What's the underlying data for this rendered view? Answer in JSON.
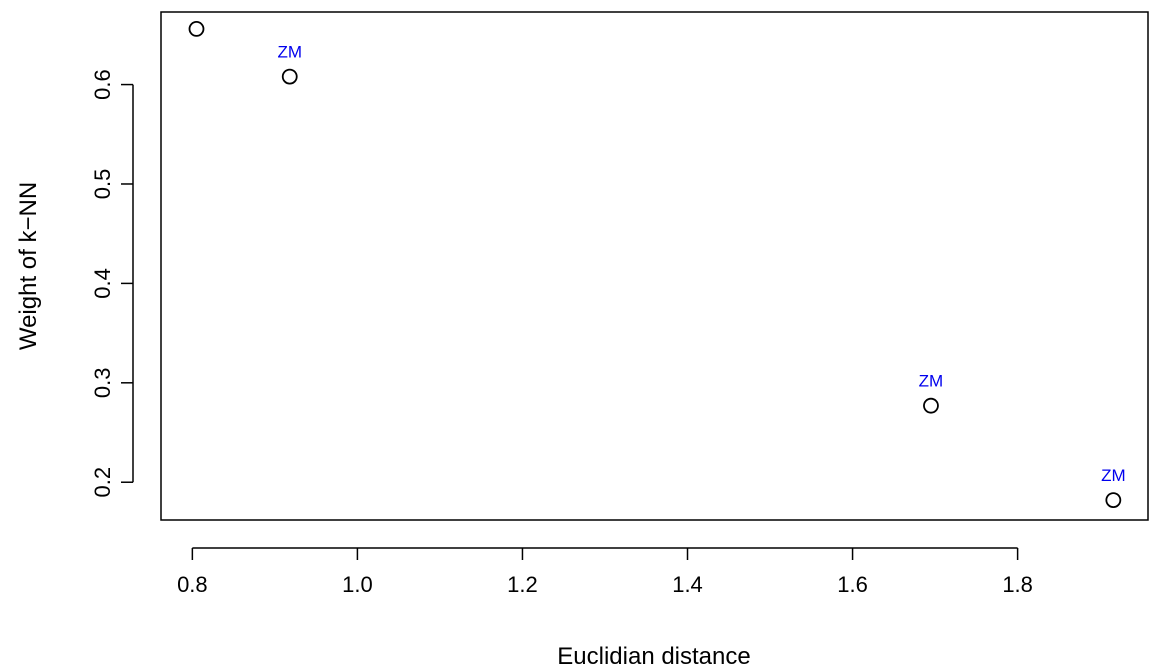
{
  "chart_data": {
    "type": "scatter",
    "title": "",
    "xlabel": "Euclidian distance",
    "ylabel": "Weight of k−NN",
    "xlim": [
      0.762,
      1.958
    ],
    "ylim": [
      0.162,
      0.673
    ],
    "xticks": [
      "0.8",
      "1.0",
      "1.2",
      "1.4",
      "1.6",
      "1.8"
    ],
    "yticks": [
      "0.2",
      "0.3",
      "0.4",
      "0.5",
      "0.6"
    ],
    "grid": false,
    "legend": "none",
    "marker_color": "#000000",
    "label_color": "#0000ee",
    "points": [
      {
        "x": 0.805,
        "y": 0.656,
        "label": ""
      },
      {
        "x": 0.918,
        "y": 0.608,
        "label": "ZM"
      },
      {
        "x": 1.695,
        "y": 0.277,
        "label": "ZM"
      },
      {
        "x": 1.916,
        "y": 0.182,
        "label": "ZM"
      }
    ]
  }
}
